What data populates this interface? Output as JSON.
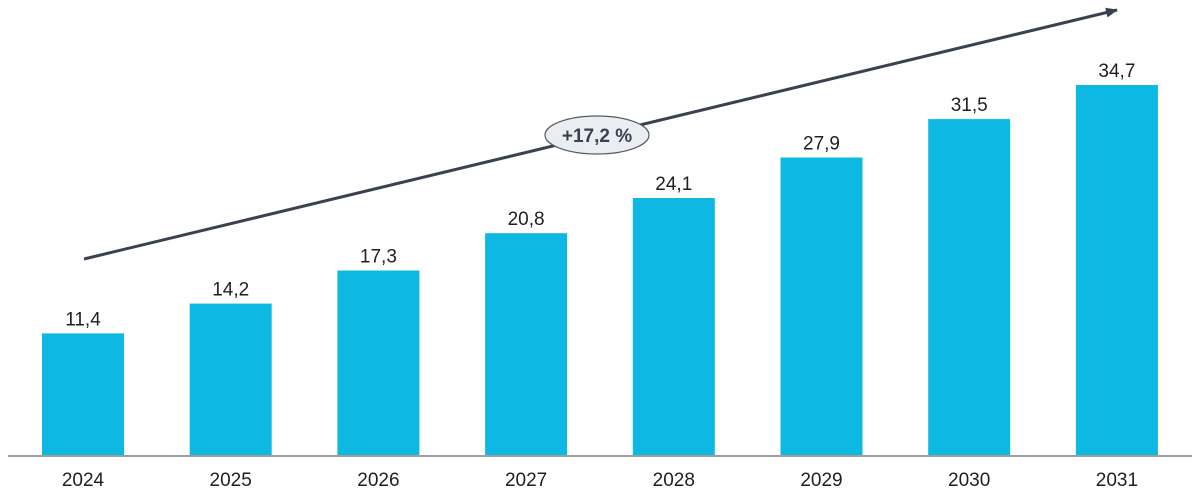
{
  "chart_data": {
    "type": "bar",
    "categories": [
      "2024",
      "2025",
      "2026",
      "2027",
      "2028",
      "2029",
      "2030",
      "2031"
    ],
    "values": [
      11.4,
      14.2,
      17.3,
      20.8,
      24.1,
      27.9,
      31.5,
      34.7
    ],
    "value_labels": [
      "11,4",
      "14,2",
      "17,3",
      "20,8",
      "24,1",
      "27,9",
      "31,5",
      "34,7"
    ],
    "annotation": "+17,2 %",
    "title": "",
    "xlabel": "",
    "ylabel": "",
    "ylim": [
      0,
      34.7
    ],
    "grid": false,
    "legend": "none",
    "colors": {
      "bar": "#0db8e3",
      "trend_arrow": "#3a4150",
      "annotation_fill": "#eaedf1",
      "annotation_border": "#555a63",
      "axis": "#7f7f7f"
    }
  }
}
